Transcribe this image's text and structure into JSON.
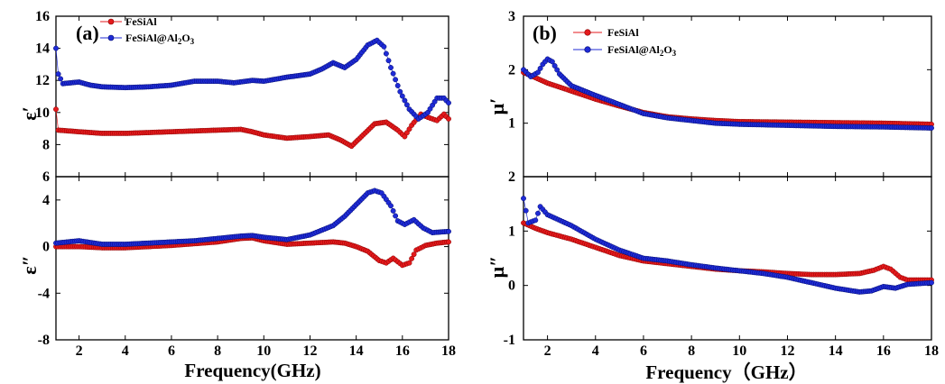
{
  "figure": {
    "panel_a_label": "(a)",
    "panel_b_label": "(b)",
    "xlabel_a": "Frequency(GHz)",
    "xlabel_b": "Frequency（GHz）",
    "legend": {
      "s1": "FeSiAl",
      "s2_prefix": "FeSiAl@Al",
      "s2_sub1": "2",
      "s2_mid": "O",
      "s2_sub2": "3"
    }
  },
  "colors": {
    "FeSiAl": "#e41a1c",
    "FeSiAl@Al2O3": "#1f2bd6"
  },
  "chart_data": [
    {
      "panel": "a-top",
      "type": "scatter",
      "ylabel": "ε′",
      "xlim": [
        1,
        18
      ],
      "ylim": [
        6,
        16
      ],
      "xticks": [
        2,
        4,
        6,
        8,
        10,
        12,
        14,
        16,
        18
      ],
      "yticks": [
        6,
        8,
        10,
        12,
        14,
        16
      ],
      "ytick_labels": [
        "6",
        "8",
        "10",
        "12",
        "14",
        "16"
      ],
      "series": [
        {
          "name": "FeSiAl",
          "points": [
            [
              1.0,
              10.2
            ],
            [
              1.1,
              8.9
            ],
            [
              2,
              8.8
            ],
            [
              3,
              8.7
            ],
            [
              4,
              8.7
            ],
            [
              5,
              8.75
            ],
            [
              6,
              8.8
            ],
            [
              7,
              8.85
            ],
            [
              8,
              8.9
            ],
            [
              9,
              8.95
            ],
            [
              9.5,
              8.8
            ],
            [
              10,
              8.6
            ],
            [
              11,
              8.4
            ],
            [
              12,
              8.5
            ],
            [
              12.8,
              8.6
            ],
            [
              13.3,
              8.3
            ],
            [
              13.8,
              7.9
            ],
            [
              14.3,
              8.6
            ],
            [
              14.8,
              9.3
            ],
            [
              15.3,
              9.4
            ],
            [
              15.8,
              8.9
            ],
            [
              16.1,
              8.5
            ],
            [
              16.4,
              9.2
            ],
            [
              16.8,
              9.9
            ],
            [
              17.1,
              9.7
            ],
            [
              17.5,
              9.5
            ],
            [
              17.8,
              9.9
            ],
            [
              18,
              9.6
            ]
          ]
        },
        {
          "name": "FeSiAl@Al2O3",
          "points": [
            [
              1.0,
              14.0
            ],
            [
              1.1,
              12.4
            ],
            [
              1.3,
              11.8
            ],
            [
              2,
              11.9
            ],
            [
              2.5,
              11.7
            ],
            [
              3,
              11.6
            ],
            [
              4,
              11.55
            ],
            [
              5,
              11.6
            ],
            [
              6,
              11.7
            ],
            [
              7,
              11.95
            ],
            [
              8,
              11.95
            ],
            [
              8.7,
              11.85
            ],
            [
              9.5,
              12.0
            ],
            [
              10,
              11.95
            ],
            [
              11,
              12.2
            ],
            [
              11.5,
              12.3
            ],
            [
              12,
              12.4
            ],
            [
              12.5,
              12.7
            ],
            [
              13,
              13.1
            ],
            [
              13.5,
              12.8
            ],
            [
              14,
              13.3
            ],
            [
              14.5,
              14.2
            ],
            [
              14.9,
              14.5
            ],
            [
              15.2,
              14.1
            ],
            [
              15.5,
              12.8
            ],
            [
              15.9,
              11.3
            ],
            [
              16.3,
              10.2
            ],
            [
              16.7,
              9.6
            ],
            [
              17.1,
              10.0
            ],
            [
              17.5,
              10.9
            ],
            [
              17.8,
              10.9
            ],
            [
              18,
              10.6
            ]
          ]
        }
      ]
    },
    {
      "panel": "a-bottom",
      "type": "scatter",
      "ylabel": "ε″",
      "xlabel": "Frequency(GHz)",
      "xlim": [
        1,
        18
      ],
      "ylim": [
        -8,
        6
      ],
      "xticks": [
        2,
        4,
        6,
        8,
        10,
        12,
        14,
        16,
        18
      ],
      "xtick_labels": [
        "2",
        "4",
        "6",
        "8",
        "10",
        "12",
        "14",
        "16",
        "18"
      ],
      "yticks": [
        -8,
        -4,
        0,
        4
      ],
      "ytick_labels": [
        "-8",
        "-4",
        "0",
        "4"
      ],
      "series": [
        {
          "name": "FeSiAl",
          "points": [
            [
              1,
              0
            ],
            [
              2,
              0
            ],
            [
              3,
              -0.1
            ],
            [
              4,
              -0.1
            ],
            [
              5,
              0
            ],
            [
              6,
              0.1
            ],
            [
              7,
              0.25
            ],
            [
              8,
              0.4
            ],
            [
              9,
              0.7
            ],
            [
              9.5,
              0.75
            ],
            [
              10,
              0.5
            ],
            [
              11,
              0.2
            ],
            [
              12,
              0.3
            ],
            [
              13,
              0.4
            ],
            [
              13.5,
              0.3
            ],
            [
              14,
              0
            ],
            [
              14.5,
              -0.4
            ],
            [
              15,
              -1.2
            ],
            [
              15.3,
              -1.4
            ],
            [
              15.6,
              -1.0
            ],
            [
              16,
              -1.6
            ],
            [
              16.3,
              -1.4
            ],
            [
              16.6,
              -0.3
            ],
            [
              17,
              0.1
            ],
            [
              17.5,
              0.3
            ],
            [
              18,
              0.4
            ]
          ]
        },
        {
          "name": "FeSiAl@Al2O3",
          "points": [
            [
              1,
              0.3
            ],
            [
              2,
              0.5
            ],
            [
              3,
              0.2
            ],
            [
              4,
              0.2
            ],
            [
              5,
              0.3
            ],
            [
              6,
              0.4
            ],
            [
              7,
              0.5
            ],
            [
              8,
              0.7
            ],
            [
              9,
              0.9
            ],
            [
              9.5,
              0.95
            ],
            [
              10,
              0.8
            ],
            [
              11,
              0.6
            ],
            [
              12,
              1.0
            ],
            [
              13,
              1.8
            ],
            [
              13.5,
              2.6
            ],
            [
              14,
              3.6
            ],
            [
              14.5,
              4.6
            ],
            [
              14.8,
              4.8
            ],
            [
              15.1,
              4.6
            ],
            [
              15.5,
              3.5
            ],
            [
              15.8,
              2.2
            ],
            [
              16.1,
              1.9
            ],
            [
              16.5,
              2.3
            ],
            [
              16.9,
              1.6
            ],
            [
              17.3,
              1.2
            ],
            [
              18,
              1.3
            ]
          ]
        }
      ]
    },
    {
      "panel": "b-top",
      "type": "scatter",
      "ylabel": "μ′",
      "xlim": [
        1,
        18
      ],
      "ylim": [
        0,
        3
      ],
      "xticks": [
        2,
        4,
        6,
        8,
        10,
        12,
        14,
        16,
        18
      ],
      "yticks": [
        1,
        2,
        3
      ],
      "ytick_labels": [
        "1",
        "2",
        "3"
      ],
      "series": [
        {
          "name": "FeSiAl",
          "points": [
            [
              1,
              1.95
            ],
            [
              1.5,
              1.85
            ],
            [
              2,
              1.75
            ],
            [
              3,
              1.6
            ],
            [
              4,
              1.45
            ],
            [
              5,
              1.32
            ],
            [
              6,
              1.2
            ],
            [
              7,
              1.12
            ],
            [
              8,
              1.08
            ],
            [
              9,
              1.05
            ],
            [
              10,
              1.03
            ],
            [
              12,
              1.02
            ],
            [
              14,
              1.01
            ],
            [
              16,
              1.0
            ],
            [
              18,
              0.98
            ]
          ]
        },
        {
          "name": "FeSiAl@Al2O3",
          "points": [
            [
              1,
              2.0
            ],
            [
              1.3,
              1.87
            ],
            [
              1.6,
              1.95
            ],
            [
              1.8,
              2.1
            ],
            [
              2.0,
              2.2
            ],
            [
              2.2,
              2.15
            ],
            [
              2.5,
              1.92
            ],
            [
              3,
              1.7
            ],
            [
              4,
              1.52
            ],
            [
              5,
              1.35
            ],
            [
              6,
              1.18
            ],
            [
              7,
              1.1
            ],
            [
              8,
              1.05
            ],
            [
              9,
              1.0
            ],
            [
              10,
              0.98
            ],
            [
              12,
              0.96
            ],
            [
              14,
              0.94
            ],
            [
              16,
              0.93
            ],
            [
              18,
              0.91
            ]
          ]
        }
      ]
    },
    {
      "panel": "b-bottom",
      "type": "scatter",
      "ylabel": "μ″",
      "xlabel": "Frequency（GHz）",
      "xlim": [
        1,
        18
      ],
      "ylim": [
        -1,
        2
      ],
      "xticks": [
        2,
        4,
        6,
        8,
        10,
        12,
        14,
        16,
        18
      ],
      "xtick_labels": [
        "2",
        "4",
        "6",
        "8",
        "10",
        "12",
        "14",
        "16",
        "18"
      ],
      "yticks": [
        -1,
        0,
        1,
        2
      ],
      "ytick_labels": [
        "-1",
        "0",
        "1",
        "2"
      ],
      "series": [
        {
          "name": "FeSiAl",
          "points": [
            [
              1,
              1.15
            ],
            [
              1.5,
              1.05
            ],
            [
              2,
              0.97
            ],
            [
              3,
              0.85
            ],
            [
              4,
              0.7
            ],
            [
              5,
              0.55
            ],
            [
              6,
              0.45
            ],
            [
              7,
              0.4
            ],
            [
              8,
              0.35
            ],
            [
              9,
              0.3
            ],
            [
              10,
              0.27
            ],
            [
              11,
              0.25
            ],
            [
              12,
              0.22
            ],
            [
              13,
              0.2
            ],
            [
              14,
              0.2
            ],
            [
              15,
              0.22
            ],
            [
              15.6,
              0.28
            ],
            [
              16,
              0.35
            ],
            [
              16.3,
              0.3
            ],
            [
              16.7,
              0.15
            ],
            [
              17,
              0.1
            ],
            [
              18,
              0.1
            ]
          ]
        },
        {
          "name": "FeSiAl@Al2O3",
          "points": [
            [
              1,
              1.6
            ],
            [
              1.2,
              1.15
            ],
            [
              1.5,
              1.2
            ],
            [
              1.7,
              1.45
            ],
            [
              2,
              1.3
            ],
            [
              3,
              1.1
            ],
            [
              4,
              0.85
            ],
            [
              5,
              0.65
            ],
            [
              6,
              0.5
            ],
            [
              7,
              0.45
            ],
            [
              8,
              0.38
            ],
            [
              9,
              0.32
            ],
            [
              10,
              0.27
            ],
            [
              11,
              0.22
            ],
            [
              12,
              0.15
            ],
            [
              13,
              0.05
            ],
            [
              14,
              -0.05
            ],
            [
              15,
              -0.12
            ],
            [
              15.5,
              -0.1
            ],
            [
              16,
              -0.02
            ],
            [
              16.5,
              -0.05
            ],
            [
              17,
              0.02
            ],
            [
              18,
              0.05
            ]
          ]
        }
      ]
    }
  ]
}
